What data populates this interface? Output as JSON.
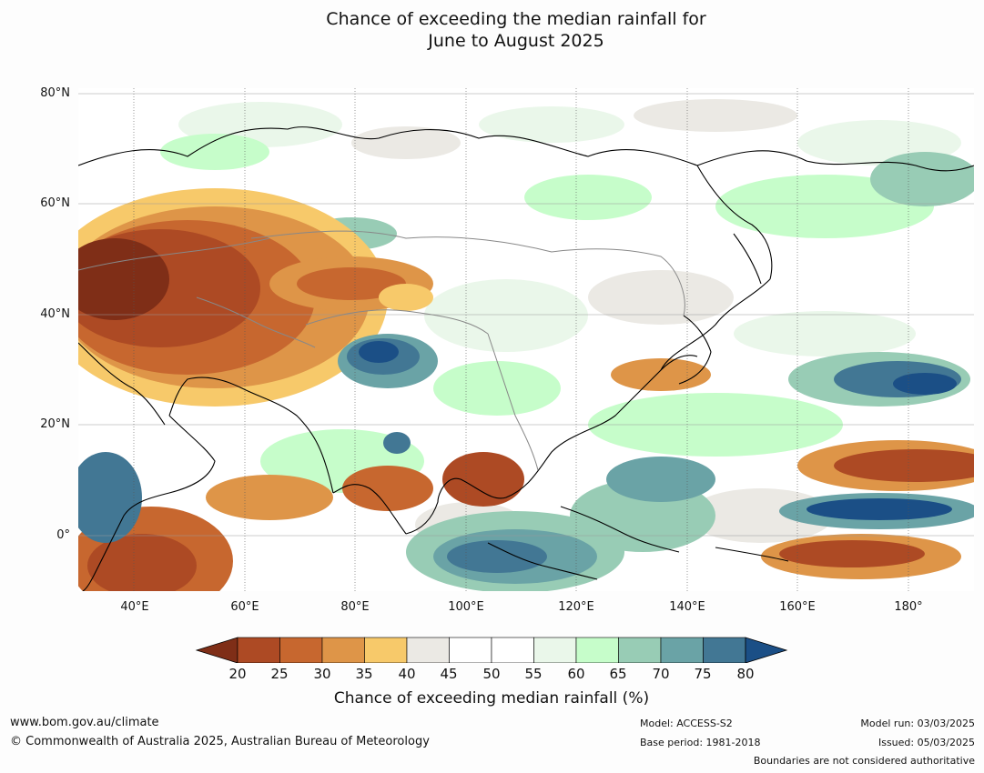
{
  "title_line1": "Chance of exceeding the median rainfall for",
  "title_line2": "June to August 2025",
  "lat_labels": [
    "80°N",
    "60°N",
    "40°N",
    "20°N",
    "0°"
  ],
  "lon_labels": [
    "40°E",
    "60°E",
    "80°E",
    "100°E",
    "120°E",
    "140°E",
    "160°E",
    "180°"
  ],
  "colorbar": {
    "ticks": [
      "20",
      "25",
      "30",
      "35",
      "40",
      "45",
      "50",
      "55",
      "60",
      "65",
      "70",
      "75",
      "80"
    ],
    "colors": [
      "#7f2e17",
      "#ad4a24",
      "#c7672f",
      "#de9548",
      "#f7c96a",
      "#ebe9e4",
      "#ffffff",
      "#ffffff",
      "#eaf7ea",
      "#c6fdca",
      "#98ccb5",
      "#6aa3a6",
      "#427794",
      "#1b4f86"
    ],
    "title": "Chance of exceeding median rainfall (%)"
  },
  "footer": {
    "url": "www.bom.gov.au/climate",
    "copyright": "© Commonwealth of Australia 2025, Australian Bureau of Meteorology",
    "model": "Model: ACCESS-S2",
    "base_period": "Base period: 1981-2018",
    "model_run": "Model run: 03/03/2025",
    "issued": "Issued: 05/03/2025",
    "disclaimer": "Boundaries are not considered authoritative"
  }
}
